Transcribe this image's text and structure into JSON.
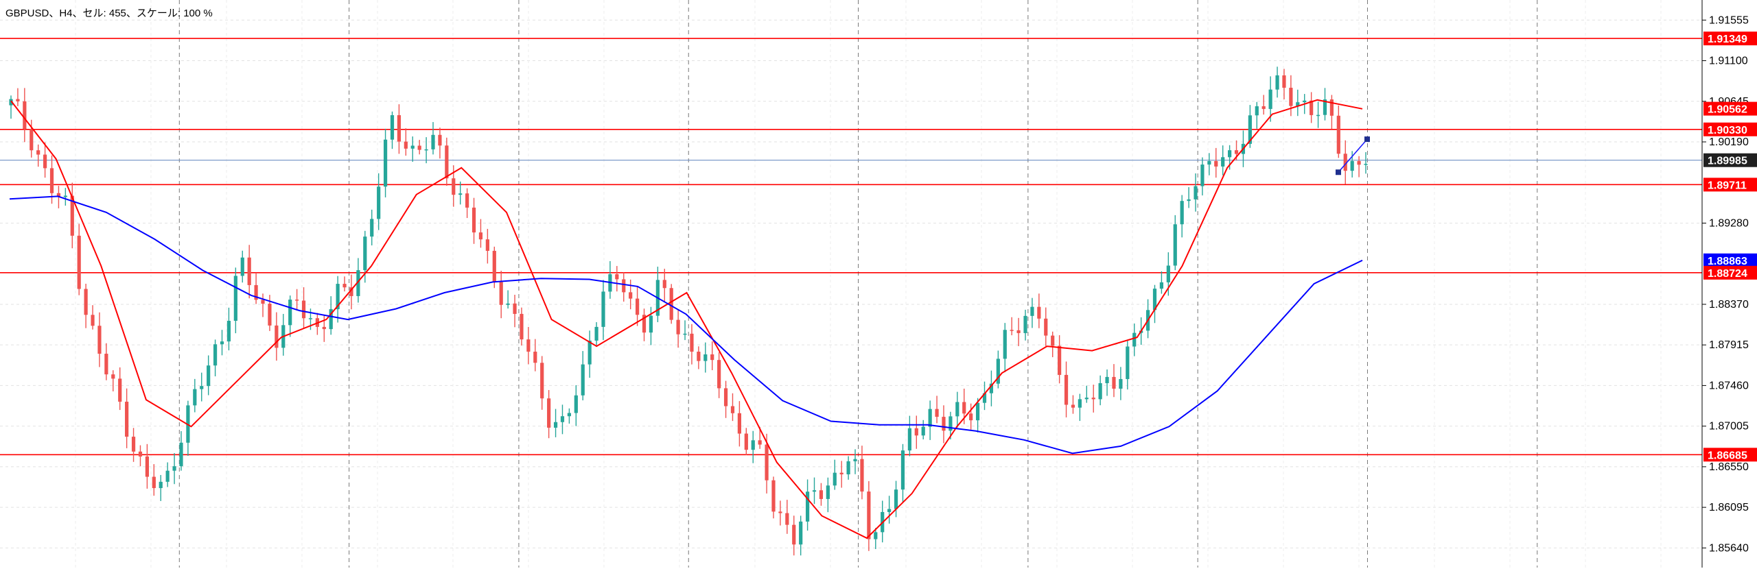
{
  "header": {
    "caption": "GBPUSD、H4、セル: 455、スケール: 100 %"
  },
  "chart_data": {
    "type": "candlestick",
    "symbol": "GBPUSD",
    "timeframe": "H4",
    "ylim": [
      1.8542,
      1.9178
    ],
    "grid": true,
    "y_ticks": [
      "1.91555",
      "1.91100",
      "1.90645",
      "1.90190",
      "1.89280",
      "1.88370",
      "1.87915",
      "1.87460",
      "1.87005",
      "1.86550",
      "1.86095",
      "1.85640"
    ],
    "price_labels": [
      {
        "value": 1.91349,
        "label": "1.91349",
        "kind": "hline"
      },
      {
        "value": 1.90562,
        "label": "1.90562",
        "kind": "ma-fast"
      },
      {
        "value": 1.9033,
        "label": "1.90330",
        "kind": "hline"
      },
      {
        "value": 1.89985,
        "label": "1.89985",
        "kind": "bid"
      },
      {
        "value": 1.89711,
        "label": "1.89711",
        "kind": "hline"
      },
      {
        "value": 1.88863,
        "label": "1.88863",
        "kind": "ma-slow"
      },
      {
        "value": 1.88724,
        "label": "1.88724",
        "kind": "hline"
      },
      {
        "value": 1.86685,
        "label": "1.86685",
        "kind": "hline"
      }
    ],
    "horizontal_lines": [
      1.91349,
      1.9033,
      1.89711,
      1.88724,
      1.86685
    ],
    "bid_line": 1.89985,
    "vertical_separators": 9,
    "series": [
      {
        "name": "",
        "type": "moving-average",
        "color": "#ff0000",
        "values": [
          1.9065,
          1.9,
          1.888,
          1.873,
          1.87,
          1.875,
          1.88,
          1.882,
          1.888,
          1.896,
          1.899,
          1.894,
          1.882,
          1.879,
          1.882,
          1.885,
          1.876,
          1.866,
          1.86,
          1.8575,
          1.8625,
          1.87,
          1.876,
          1.879,
          1.8785,
          1.88,
          1.888,
          1.899,
          1.905,
          1.9066,
          1.9056
        ]
      },
      {
        "name": "",
        "type": "moving-average",
        "color": "#0000ff",
        "values": [
          1.8955,
          1.8958,
          1.894,
          1.891,
          1.8875,
          1.8847,
          1.883,
          1.882,
          1.8832,
          1.885,
          1.8862,
          1.8866,
          1.8865,
          1.8857,
          1.8826,
          1.8775,
          1.8729,
          1.8706,
          1.8702,
          1.8702,
          1.8695,
          1.8685,
          1.867,
          1.8678,
          1.87,
          1.874,
          1.88,
          1.886,
          1.88863
        ]
      },
      {
        "name": "",
        "type": "price-path",
        "values": [
          1.906,
          1.903,
          1.897,
          1.894,
          1.882,
          1.876,
          1.871,
          1.864,
          1.863,
          1.87,
          1.875,
          1.88,
          1.888,
          1.884,
          1.88,
          1.884,
          1.881,
          1.884,
          1.886,
          1.895,
          1.904,
          1.901,
          1.902,
          1.898,
          1.894,
          1.888,
          1.884,
          1.879,
          1.872,
          1.87,
          1.876,
          1.886,
          1.886,
          1.881,
          1.886,
          1.88,
          1.879,
          1.875,
          1.87,
          1.868,
          1.861,
          1.858,
          1.862,
          1.864,
          1.867,
          1.858,
          1.861,
          1.868,
          1.872,
          1.87,
          1.872,
          1.873,
          1.879,
          1.883,
          1.882,
          1.875,
          1.872,
          1.874,
          1.876,
          1.88,
          1.885,
          1.892,
          1.897,
          1.901,
          1.899,
          1.905,
          1.908,
          1.907,
          1.906,
          1.905,
          1.899,
          1.9002
        ]
      }
    ],
    "trendline": {
      "from": 1.8985,
      "to": 1.9022
    },
    "plot_color": "#000000",
    "up_color": "#26a69a",
    "down_color": "#ef5350"
  }
}
